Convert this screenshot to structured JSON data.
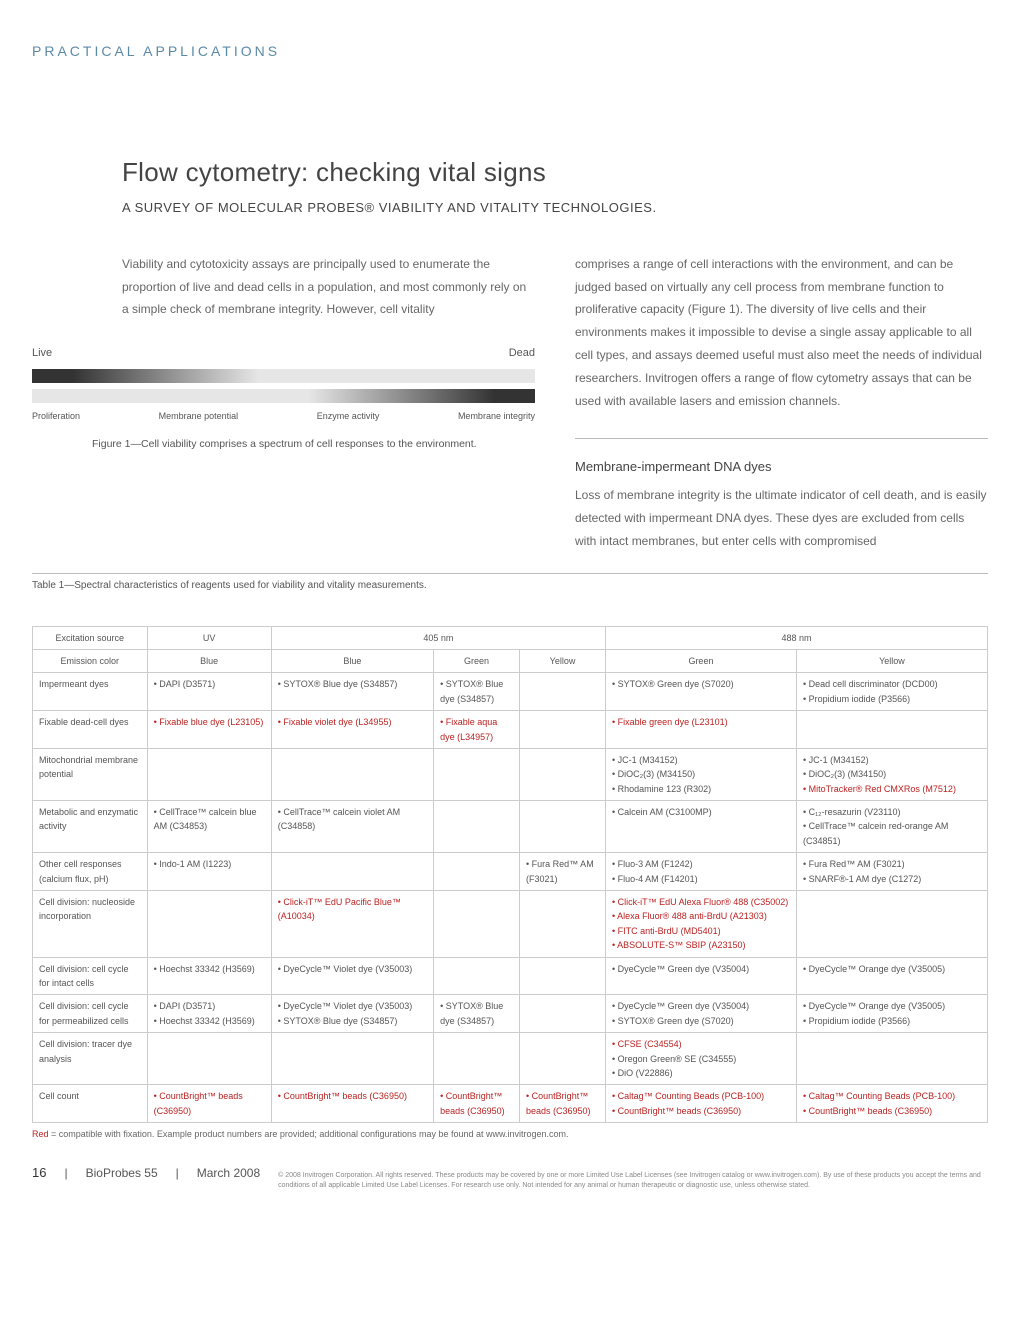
{
  "header": {
    "section_label": "PRACTICAL APPLICATIONS"
  },
  "title": "Flow cytometry: checking vital signs",
  "subtitle": "A SURVEY OF MOLECULAR PROBES® VIABILITY AND VITALITY TECHNOLOGIES.",
  "left_intro": "Viability and cytotoxicity assays are principally used to enumerate the proportion of live and dead cells in a population, and most commonly rely on a simple check of membrane integrity. However, cell vitality",
  "right_intro": "comprises a range of cell interactions with the environment, and can be judged based on virtually any cell process from membrane function to proliferative capacity (Figure 1). The diversity of live cells and their environments makes it impossible to devise a single assay applicable to all cell types, and assays deemed useful must also meet the needs of individual researchers. Invitrogen offers a range of flow cytometry assays that can be used with available lasers and emission channels.",
  "fig1": {
    "left_label": "Live",
    "right_label": "Dead",
    "axis": [
      "Proliferation",
      "Membrane potential",
      "Enzyme activity",
      "Membrane integrity"
    ],
    "caption": "Figure 1—Cell viability comprises a spectrum of cell responses to the environment.",
    "gradient_dark": "#333333",
    "gradient_light": "#e6e6e6"
  },
  "section2": {
    "heading": "Membrane-impermeant DNA dyes",
    "body": "Loss of membrane integrity is the ultimate indicator of cell death, and is easily detected with impermeant DNA dyes. These dyes are excluded from cells with intact membranes, but enter cells with compromised"
  },
  "table": {
    "title": "Table 1—Spectral characteristics of reagents used for viability and vitality measurements.",
    "header1": {
      "label": "Excitation source",
      "uv": "UV",
      "nm405": "405 nm",
      "nm488": "488 nm"
    },
    "header2": {
      "label": "Emission color",
      "c1": "Blue",
      "c2": "Blue",
      "c3": "Green",
      "c4": "Yellow",
      "c5": "Green",
      "c6": "Yellow"
    },
    "rows": [
      {
        "name": "Impermeant dyes",
        "c1": "• DAPI (D3571)",
        "c2": "• SYTOX® Blue dye (S34857)",
        "c3": "• SYTOX® Blue dye (S34857)",
        "c4": "",
        "c5": "• SYTOX® Green dye (S7020)",
        "c6": "• Dead cell discriminator (DCD00)\n• Propidium iodide (P3566)"
      },
      {
        "name": "Fixable dead-cell dyes",
        "c1": "",
        "c1_red": "• Fixable blue dye (L23105)",
        "c2": "",
        "c2_red": "• Fixable violet dye (L34955)",
        "c3": "",
        "c3_red": "• Fixable aqua dye (L34957)",
        "c4": "",
        "c5": "",
        "c5_red": "• Fixable green dye (L23101)",
        "c6": ""
      },
      {
        "name": "Mitochondrial membrane potential",
        "c1": "",
        "c2": "",
        "c3": "",
        "c4": "",
        "c5": "• JC-1 (M34152)\n• DiOC₂(3) (M34150)\n• Rhodamine 123 (R302)",
        "c6": "• JC-1 (M34152)\n• DiOC₂(3) (M34150)",
        "c6_red": "• MitoTracker® Red CMXRos (M7512)"
      },
      {
        "name": "Metabolic and enzymatic activity",
        "c1": "• CellTrace™ calcein blue AM (C34853)",
        "c2": "• CellTrace™ calcein violet AM (C34858)",
        "c3": "",
        "c4": "",
        "c5": "• Calcein AM (C3100MP)",
        "c6": "• C₁₂-resazurin (V23110)\n• CellTrace™ calcein red-orange AM (C34851)"
      },
      {
        "name": "Other cell responses (calcium flux, pH)",
        "c1": "• Indo-1 AM (I1223)",
        "c2": "",
        "c3": "",
        "c4": "• Fura Red™ AM (F3021)",
        "c5": "• Fluo-3 AM (F1242)\n• Fluo-4 AM (F14201)",
        "c6": "• Fura Red™ AM (F3021)\n• SNARF®-1 AM dye (C1272)"
      },
      {
        "name": "Cell division: nucleoside incorporation",
        "c1": "",
        "c2": "",
        "c2_red": "• Click-iT™ EdU Pacific Blue™ (A10034)",
        "c3": "",
        "c4": "",
        "c5": "",
        "c5_red": "• Click-iT™ EdU Alexa Fluor® 488 (C35002)\n• Alexa Fluor® 488 anti-BrdU (A21303)\n• FITC anti-BrdU (MD5401)\n• ABSOLUTE-S™ SBIP (A23150)",
        "c6": ""
      },
      {
        "name": "Cell division: cell cycle for intact cells",
        "c1": "• Hoechst 33342 (H3569)",
        "c2": "• DyeCycle™ Violet dye (V35003)",
        "c3": "",
        "c4": "",
        "c5": "• DyeCycle™ Green dye (V35004)",
        "c6": "• DyeCycle™ Orange dye (V35005)"
      },
      {
        "name": "Cell division: cell cycle for permeabilized cells",
        "c1": "• DAPI (D3571)\n• Hoechst 33342 (H3569)",
        "c2": "• DyeCycle™ Violet dye (V35003)\n• SYTOX® Blue dye (S34857)",
        "c3": "• SYTOX® Blue dye (S34857)",
        "c4": "",
        "c5": "• DyeCycle™ Green dye (V35004)\n• SYTOX® Green dye (S7020)",
        "c6": "• DyeCycle™ Orange dye (V35005)\n• Propidium iodide (P3566)"
      },
      {
        "name": "Cell division: tracer dye analysis",
        "c1": "",
        "c2": "",
        "c3": "",
        "c4": "",
        "c5": "",
        "c5_red": "• CFSE (C34554)",
        "c5_after": "• Oregon Green® SE (C34555)\n• DiO (V22886)",
        "c6": ""
      },
      {
        "name": "Cell count",
        "c1": "",
        "c1_red": "• CountBright™ beads (C36950)",
        "c2": "",
        "c2_red": "• CountBright™ beads (C36950)",
        "c3": "",
        "c3_red": "• CountBright™ beads (C36950)",
        "c4": "",
        "c4_red": "• CountBright™ beads (C36950)",
        "c5": "",
        "c5_red": "• Caltag™ Counting Beads (PCB-100)\n• CountBright™ beads (C36950)",
        "c6": "",
        "c6_red": "• Caltag™ Counting Beads (PCB-100)\n• CountBright™ beads (C36950)"
      }
    ],
    "footnote": "Red = compatible with fixation. Example product numbers are provided; additional configurations may be found at www.invitrogen.com."
  },
  "footer": {
    "page": "16",
    "pub": "BioProbes 55",
    "date": "March 2008",
    "legal": "© 2008 Invitrogen Corporation. All rights reserved. These products may be covered by one or more Limited Use Label Licenses (see Invitrogen catalog or www.invitrogen.com). By use of these products you accept the terms and conditions of all applicable Limited Use Label Licenses. For research use only. Not intended for any animal or human therapeutic or diagnostic use, unless otherwise stated."
  },
  "colors": {
    "accent": "#5b8aa6",
    "red": "#b22222",
    "border": "#cccccc"
  }
}
